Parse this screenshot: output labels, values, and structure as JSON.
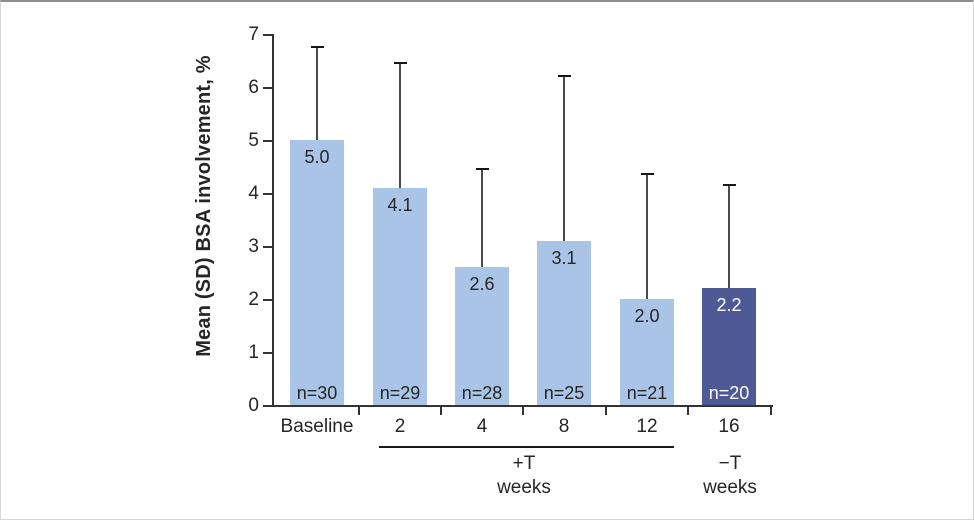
{
  "figure": {
    "background": "#ffffff",
    "frame_border_color": "#d6d6d6",
    "frame_top_border_color": "#8f8f8f"
  },
  "colors": {
    "bar_light": "#a9c4e6",
    "bar_dark": "#4e5a96",
    "text_dark": "#262626",
    "text_on_dark_bar": "#ffffff",
    "axis": "#333333",
    "whisker": "#4a4a4a",
    "whisker_cap": "#161616"
  },
  "chart_data": {
    "type": "bar",
    "title": "",
    "ylabel": "Mean (SD) BSA involvement, %",
    "xlabel": "",
    "ylim": [
      0,
      7
    ],
    "yticks": [
      "0",
      "1",
      "2",
      "3",
      "4",
      "5",
      "6",
      "7"
    ],
    "grid": false,
    "legend": false,
    "categories": [
      "Baseline",
      "2",
      "4",
      "8",
      "12",
      "16"
    ],
    "values": [
      5.0,
      4.1,
      2.6,
      3.1,
      2.0,
      2.2
    ],
    "bar_value_labels": [
      "5.0",
      "4.1",
      "2.6",
      "3.1",
      "2.0",
      "2.2"
    ],
    "n_labels": [
      "n=30",
      "n=29",
      "n=28",
      "n=25",
      "n=21",
      "n=20"
    ],
    "error_upper": [
      6.75,
      6.45,
      4.45,
      6.2,
      4.35,
      4.15
    ],
    "error_bars": "upper SD whiskers only",
    "bar_styles": [
      "light",
      "light",
      "light",
      "light",
      "light",
      "dark"
    ],
    "groups": [
      {
        "label": "+T",
        "sublabel": "weeks",
        "categories": [
          "2",
          "4",
          "8",
          "12"
        ],
        "underline": true
      },
      {
        "label": "−T",
        "sublabel": "weeks",
        "categories": [
          "16"
        ],
        "underline": false
      }
    ]
  }
}
